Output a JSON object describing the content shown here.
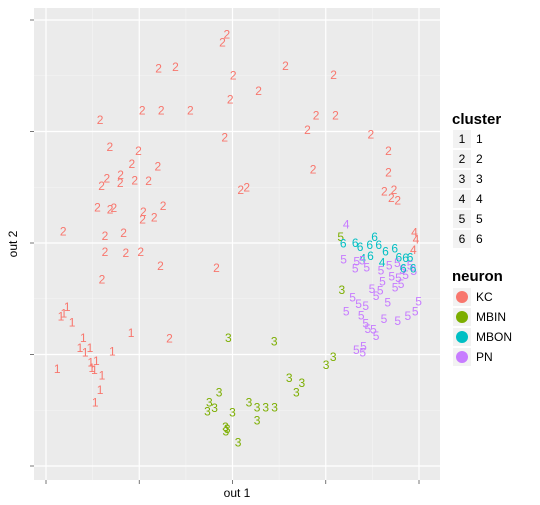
{
  "chart_data": {
    "type": "scatter",
    "xlabel": "out 1",
    "ylabel": "out 2",
    "xlim": [
      0,
      1
    ],
    "ylim": [
      0,
      1
    ],
    "grid": true,
    "legend_placement": "right",
    "neuron_colors": {
      "KC": "#F8766D",
      "MBIN": "#7CAE00",
      "MBON": "#00BFC4",
      "PN": "#C77CFF"
    },
    "legends": {
      "cluster": {
        "title": "cluster",
        "items": [
          {
            "key": "1",
            "label": "1"
          },
          {
            "key": "2",
            "label": "2"
          },
          {
            "key": "3",
            "label": "3"
          },
          {
            "key": "4",
            "label": "4"
          },
          {
            "key": "5",
            "label": "5"
          },
          {
            "key": "6",
            "label": "6"
          }
        ]
      },
      "neuron": {
        "title": "neuron",
        "items": [
          {
            "label": "KC",
            "color": "#F8766D"
          },
          {
            "label": "MBIN",
            "color": "#7CAE00"
          },
          {
            "label": "MBON",
            "color": "#00BFC4"
          },
          {
            "label": "PN",
            "color": "#C77CFF"
          }
        ]
      }
    },
    "points": [
      {
        "x": 0.048,
        "y": 0.342,
        "cluster": "1",
        "neuron": "KC"
      },
      {
        "x": 0.057,
        "y": 0.357,
        "cluster": "1",
        "neuron": "KC"
      },
      {
        "x": 0.04,
        "y": 0.335,
        "cluster": "1",
        "neuron": "KC"
      },
      {
        "x": 0.07,
        "y": 0.322,
        "cluster": "1",
        "neuron": "KC"
      },
      {
        "x": 0.1,
        "y": 0.287,
        "cluster": "1",
        "neuron": "KC"
      },
      {
        "x": 0.091,
        "y": 0.265,
        "cluster": "1",
        "neuron": "KC"
      },
      {
        "x": 0.105,
        "y": 0.255,
        "cluster": "1",
        "neuron": "KC"
      },
      {
        "x": 0.12,
        "y": 0.232,
        "cluster": "1",
        "neuron": "KC"
      },
      {
        "x": 0.118,
        "y": 0.265,
        "cluster": "1",
        "neuron": "KC"
      },
      {
        "x": 0.135,
        "y": 0.235,
        "cluster": "1",
        "neuron": "KC"
      },
      {
        "x": 0.123,
        "y": 0.22,
        "cluster": "1",
        "neuron": "KC"
      },
      {
        "x": 0.13,
        "y": 0.215,
        "cluster": "1",
        "neuron": "KC"
      },
      {
        "x": 0.03,
        "y": 0.217,
        "cluster": "1",
        "neuron": "KC"
      },
      {
        "x": 0.145,
        "y": 0.17,
        "cluster": "1",
        "neuron": "KC"
      },
      {
        "x": 0.132,
        "y": 0.142,
        "cluster": "1",
        "neuron": "KC"
      },
      {
        "x": 0.228,
        "y": 0.298,
        "cluster": "1",
        "neuron": "KC"
      },
      {
        "x": 0.178,
        "y": 0.257,
        "cluster": "1",
        "neuron": "KC"
      },
      {
        "x": 0.15,
        "y": 0.203,
        "cluster": "1",
        "neuron": "KC"
      },
      {
        "x": 0.485,
        "y": 0.967,
        "cluster": "2",
        "neuron": "KC"
      },
      {
        "x": 0.473,
        "y": 0.95,
        "cluster": "2",
        "neuron": "KC"
      },
      {
        "x": 0.302,
        "y": 0.891,
        "cluster": "2",
        "neuron": "KC"
      },
      {
        "x": 0.347,
        "y": 0.895,
        "cluster": "2",
        "neuron": "KC"
      },
      {
        "x": 0.502,
        "y": 0.876,
        "cluster": "2",
        "neuron": "KC"
      },
      {
        "x": 0.642,
        "y": 0.897,
        "cluster": "2",
        "neuron": "KC"
      },
      {
        "x": 0.771,
        "y": 0.877,
        "cluster": "2",
        "neuron": "KC"
      },
      {
        "x": 0.57,
        "y": 0.841,
        "cluster": "2",
        "neuron": "KC"
      },
      {
        "x": 0.494,
        "y": 0.822,
        "cluster": "2",
        "neuron": "KC"
      },
      {
        "x": 0.258,
        "y": 0.797,
        "cluster": "2",
        "neuron": "KC"
      },
      {
        "x": 0.309,
        "y": 0.797,
        "cluster": "2",
        "neuron": "KC"
      },
      {
        "x": 0.387,
        "y": 0.797,
        "cluster": "2",
        "neuron": "KC"
      },
      {
        "x": 0.724,
        "y": 0.786,
        "cluster": "2",
        "neuron": "KC"
      },
      {
        "x": 0.776,
        "y": 0.786,
        "cluster": "2",
        "neuron": "KC"
      },
      {
        "x": 0.145,
        "y": 0.776,
        "cluster": "2",
        "neuron": "KC"
      },
      {
        "x": 0.701,
        "y": 0.753,
        "cluster": "2",
        "neuron": "KC"
      },
      {
        "x": 0.871,
        "y": 0.743,
        "cluster": "2",
        "neuron": "KC"
      },
      {
        "x": 0.479,
        "y": 0.737,
        "cluster": "2",
        "neuron": "KC"
      },
      {
        "x": 0.171,
        "y": 0.715,
        "cluster": "2",
        "neuron": "KC"
      },
      {
        "x": 0.248,
        "y": 0.706,
        "cluster": "2",
        "neuron": "KC"
      },
      {
        "x": 0.918,
        "y": 0.706,
        "cluster": "2",
        "neuron": "KC"
      },
      {
        "x": 0.23,
        "y": 0.677,
        "cluster": "2",
        "neuron": "KC"
      },
      {
        "x": 0.3,
        "y": 0.671,
        "cluster": "2",
        "neuron": "KC"
      },
      {
        "x": 0.716,
        "y": 0.665,
        "cluster": "2",
        "neuron": "KC"
      },
      {
        "x": 0.2,
        "y": 0.653,
        "cluster": "2",
        "neuron": "KC"
      },
      {
        "x": 0.163,
        "y": 0.645,
        "cluster": "2",
        "neuron": "KC"
      },
      {
        "x": 0.238,
        "y": 0.64,
        "cluster": "2",
        "neuron": "KC"
      },
      {
        "x": 0.275,
        "y": 0.639,
        "cluster": "2",
        "neuron": "KC"
      },
      {
        "x": 0.199,
        "y": 0.635,
        "cluster": "2",
        "neuron": "KC"
      },
      {
        "x": 0.149,
        "y": 0.628,
        "cluster": "2",
        "neuron": "KC"
      },
      {
        "x": 0.918,
        "y": 0.658,
        "cluster": "2",
        "neuron": "KC"
      },
      {
        "x": 0.538,
        "y": 0.625,
        "cluster": "2",
        "neuron": "KC"
      },
      {
        "x": 0.522,
        "y": 0.619,
        "cluster": "2",
        "neuron": "KC"
      },
      {
        "x": 0.907,
        "y": 0.616,
        "cluster": "2",
        "neuron": "KC"
      },
      {
        "x": 0.933,
        "y": 0.619,
        "cluster": "2",
        "neuron": "KC"
      },
      {
        "x": 0.926,
        "y": 0.601,
        "cluster": "2",
        "neuron": "KC"
      },
      {
        "x": 0.943,
        "y": 0.595,
        "cluster": "2",
        "neuron": "KC"
      },
      {
        "x": 0.138,
        "y": 0.58,
        "cluster": "2",
        "neuron": "KC"
      },
      {
        "x": 0.172,
        "y": 0.575,
        "cluster": "2",
        "neuron": "KC"
      },
      {
        "x": 0.182,
        "y": 0.578,
        "cluster": "2",
        "neuron": "KC"
      },
      {
        "x": 0.314,
        "y": 0.583,
        "cluster": "2",
        "neuron": "KC"
      },
      {
        "x": 0.261,
        "y": 0.57,
        "cluster": "2",
        "neuron": "KC"
      },
      {
        "x": 0.259,
        "y": 0.553,
        "cluster": "2",
        "neuron": "KC"
      },
      {
        "x": 0.29,
        "y": 0.557,
        "cluster": "2",
        "neuron": "KC"
      },
      {
        "x": 0.046,
        "y": 0.526,
        "cluster": "2",
        "neuron": "KC"
      },
      {
        "x": 0.158,
        "y": 0.516,
        "cluster": "2",
        "neuron": "KC"
      },
      {
        "x": 0.208,
        "y": 0.522,
        "cluster": "2",
        "neuron": "KC"
      },
      {
        "x": 0.158,
        "y": 0.48,
        "cluster": "2",
        "neuron": "KC"
      },
      {
        "x": 0.214,
        "y": 0.478,
        "cluster": "2",
        "neuron": "KC"
      },
      {
        "x": 0.254,
        "y": 0.48,
        "cluster": "2",
        "neuron": "KC"
      },
      {
        "x": 0.307,
        "y": 0.448,
        "cluster": "2",
        "neuron": "KC"
      },
      {
        "x": 0.457,
        "y": 0.444,
        "cluster": "2",
        "neuron": "KC"
      },
      {
        "x": 0.15,
        "y": 0.418,
        "cluster": "2",
        "neuron": "KC"
      },
      {
        "x": 0.331,
        "y": 0.286,
        "cluster": "2",
        "neuron": "KC"
      },
      {
        "x": 0.489,
        "y": 0.287,
        "cluster": "3",
        "neuron": "MBIN"
      },
      {
        "x": 0.612,
        "y": 0.279,
        "cluster": "3",
        "neuron": "MBIN"
      },
      {
        "x": 0.77,
        "y": 0.244,
        "cluster": "3",
        "neuron": "MBIN"
      },
      {
        "x": 0.751,
        "y": 0.226,
        "cluster": "3",
        "neuron": "MBIN"
      },
      {
        "x": 0.652,
        "y": 0.197,
        "cluster": "3",
        "neuron": "MBIN"
      },
      {
        "x": 0.686,
        "y": 0.186,
        "cluster": "3",
        "neuron": "MBIN"
      },
      {
        "x": 0.671,
        "y": 0.165,
        "cluster": "3",
        "neuron": "MBIN"
      },
      {
        "x": 0.464,
        "y": 0.165,
        "cluster": "3",
        "neuron": "MBIN"
      },
      {
        "x": 0.438,
        "y": 0.142,
        "cluster": "3",
        "neuron": "MBIN"
      },
      {
        "x": 0.452,
        "y": 0.13,
        "cluster": "3",
        "neuron": "MBIN"
      },
      {
        "x": 0.544,
        "y": 0.142,
        "cluster": "3",
        "neuron": "MBIN"
      },
      {
        "x": 0.566,
        "y": 0.131,
        "cluster": "3",
        "neuron": "MBIN"
      },
      {
        "x": 0.589,
        "y": 0.131,
        "cluster": "3",
        "neuron": "MBIN"
      },
      {
        "x": 0.613,
        "y": 0.131,
        "cluster": "3",
        "neuron": "MBIN"
      },
      {
        "x": 0.433,
        "y": 0.122,
        "cluster": "3",
        "neuron": "MBIN"
      },
      {
        "x": 0.5,
        "y": 0.12,
        "cluster": "3",
        "neuron": "MBIN"
      },
      {
        "x": 0.566,
        "y": 0.102,
        "cluster": "3",
        "neuron": "MBIN"
      },
      {
        "x": 0.481,
        "y": 0.088,
        "cluster": "3",
        "neuron": "MBIN"
      },
      {
        "x": 0.482,
        "y": 0.077,
        "cluster": "3",
        "neuron": "MBIN"
      },
      {
        "x": 0.486,
        "y": 0.083,
        "cluster": "3",
        "neuron": "MBIN"
      },
      {
        "x": 0.515,
        "y": 0.053,
        "cluster": "3",
        "neuron": "MBIN"
      },
      {
        "x": 0.793,
        "y": 0.395,
        "cluster": "3",
        "neuron": "MBIN"
      },
      {
        "x": 0.805,
        "y": 0.542,
        "cluster": "4",
        "neuron": "PN"
      },
      {
        "x": 0.849,
        "y": 0.465,
        "cluster": "4",
        "neuron": "MBON"
      },
      {
        "x": 0.901,
        "y": 0.456,
        "cluster": "4",
        "neuron": "MBON"
      },
      {
        "x": 0.988,
        "y": 0.524,
        "cluster": "4",
        "neuron": "KC"
      },
      {
        "x": 0.992,
        "y": 0.508,
        "cluster": "4",
        "neuron": "KC"
      },
      {
        "x": 0.985,
        "y": 0.484,
        "cluster": "4",
        "neuron": "KC"
      },
      {
        "x": 0.79,
        "y": 0.514,
        "cluster": "5",
        "neuron": "MBIN"
      },
      {
        "x": 0.798,
        "y": 0.463,
        "cluster": "5",
        "neuron": "PN"
      },
      {
        "x": 0.833,
        "y": 0.459,
        "cluster": "5",
        "neuron": "PN"
      },
      {
        "x": 0.848,
        "y": 0.461,
        "cluster": "5",
        "neuron": "PN"
      },
      {
        "x": 0.829,
        "y": 0.443,
        "cluster": "5",
        "neuron": "PN"
      },
      {
        "x": 0.86,
        "y": 0.445,
        "cluster": "5",
        "neuron": "PN"
      },
      {
        "x": 0.898,
        "y": 0.438,
        "cluster": "5",
        "neuron": "PN"
      },
      {
        "x": 0.92,
        "y": 0.45,
        "cluster": "5",
        "neuron": "PN"
      },
      {
        "x": 0.942,
        "y": 0.455,
        "cluster": "5",
        "neuron": "PN"
      },
      {
        "x": 0.956,
        "y": 0.44,
        "cluster": "5",
        "neuron": "PN"
      },
      {
        "x": 0.976,
        "y": 0.449,
        "cluster": "5",
        "neuron": "PN"
      },
      {
        "x": 0.986,
        "y": 0.437,
        "cluster": "5",
        "neuron": "PN"
      },
      {
        "x": 0.927,
        "y": 0.425,
        "cluster": "5",
        "neuron": "PN"
      },
      {
        "x": 0.945,
        "y": 0.422,
        "cluster": "5",
        "neuron": "PN"
      },
      {
        "x": 0.964,
        "y": 0.428,
        "cluster": "5",
        "neuron": "PN"
      },
      {
        "x": 0.902,
        "y": 0.414,
        "cluster": "5",
        "neuron": "PN"
      },
      {
        "x": 0.874,
        "y": 0.397,
        "cluster": "5",
        "neuron": "PN"
      },
      {
        "x": 0.896,
        "y": 0.393,
        "cluster": "5",
        "neuron": "PN"
      },
      {
        "x": 0.936,
        "y": 0.4,
        "cluster": "5",
        "neuron": "PN"
      },
      {
        "x": 0.952,
        "y": 0.408,
        "cluster": "5",
        "neuron": "PN"
      },
      {
        "x": 0.885,
        "y": 0.381,
        "cluster": "5",
        "neuron": "PN"
      },
      {
        "x": 0.822,
        "y": 0.378,
        "cluster": "5",
        "neuron": "PN"
      },
      {
        "x": 0.838,
        "y": 0.363,
        "cluster": "5",
        "neuron": "PN"
      },
      {
        "x": 0.857,
        "y": 0.359,
        "cluster": "5",
        "neuron": "PN"
      },
      {
        "x": 0.916,
        "y": 0.367,
        "cluster": "5",
        "neuron": "PN"
      },
      {
        "x": 0.805,
        "y": 0.346,
        "cluster": "5",
        "neuron": "PN"
      },
      {
        "x": 0.845,
        "y": 0.337,
        "cluster": "5",
        "neuron": "PN"
      },
      {
        "x": 0.857,
        "y": 0.319,
        "cluster": "5",
        "neuron": "PN"
      },
      {
        "x": 0.863,
        "y": 0.307,
        "cluster": "5",
        "neuron": "PN"
      },
      {
        "x": 0.878,
        "y": 0.306,
        "cluster": "5",
        "neuron": "PN"
      },
      {
        "x": 0.906,
        "y": 0.33,
        "cluster": "5",
        "neuron": "PN"
      },
      {
        "x": 0.832,
        "y": 0.26,
        "cluster": "5",
        "neuron": "PN"
      },
      {
        "x": 0.849,
        "y": 0.255,
        "cluster": "5",
        "neuron": "PN"
      },
      {
        "x": 0.851,
        "y": 0.268,
        "cluster": "5",
        "neuron": "PN"
      },
      {
        "x": 0.885,
        "y": 0.292,
        "cluster": "5",
        "neuron": "PN"
      },
      {
        "x": 0.943,
        "y": 0.325,
        "cluster": "5",
        "neuron": "PN"
      },
      {
        "x": 0.97,
        "y": 0.336,
        "cluster": "5",
        "neuron": "PN"
      },
      {
        "x": 0.99,
        "y": 0.346,
        "cluster": "5",
        "neuron": "PN"
      },
      {
        "x": 0.999,
        "y": 0.369,
        "cluster": "5",
        "neuron": "PN"
      },
      {
        "x": 0.797,
        "y": 0.499,
        "cluster": "6",
        "neuron": "MBON"
      },
      {
        "x": 0.881,
        "y": 0.513,
        "cluster": "6",
        "neuron": "MBON"
      },
      {
        "x": 0.829,
        "y": 0.5,
        "cluster": "6",
        "neuron": "MBON"
      },
      {
        "x": 0.842,
        "y": 0.491,
        "cluster": "6",
        "neuron": "MBON"
      },
      {
        "x": 0.868,
        "y": 0.495,
        "cluster": "6",
        "neuron": "MBON"
      },
      {
        "x": 0.892,
        "y": 0.495,
        "cluster": "6",
        "neuron": "MBON"
      },
      {
        "x": 0.91,
        "y": 0.481,
        "cluster": "6",
        "neuron": "MBON"
      },
      {
        "x": 0.935,
        "y": 0.488,
        "cluster": "6",
        "neuron": "MBON"
      },
      {
        "x": 0.87,
        "y": 0.471,
        "cluster": "6",
        "neuron": "MBON"
      },
      {
        "x": 0.946,
        "y": 0.467,
        "cluster": "6",
        "neuron": "MBON"
      },
      {
        "x": 0.964,
        "y": 0.466,
        "cluster": "6",
        "neuron": "MBON"
      },
      {
        "x": 0.976,
        "y": 0.468,
        "cluster": "6",
        "neuron": "MBON"
      },
      {
        "x": 0.958,
        "y": 0.443,
        "cluster": "6",
        "neuron": "MBON"
      },
      {
        "x": 0.984,
        "y": 0.443,
        "cluster": "6",
        "neuron": "MBON"
      }
    ]
  }
}
